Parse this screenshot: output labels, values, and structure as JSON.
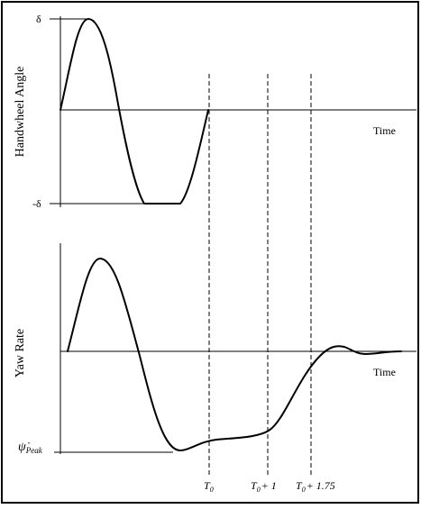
{
  "top_panel": {
    "ylabel": "Handwheel Angle",
    "xlabel": "Time",
    "pos_tick": "δ",
    "neg_tick": "-δ"
  },
  "bottom_panel": {
    "ylabel": "Yaw Rate",
    "xlabel": "Time",
    "peak_symbol": "ψ̇",
    "peak_subscript": "Peak"
  },
  "markers": [
    {
      "base": "T",
      "sub": "0",
      "suffix": ""
    },
    {
      "base": "T",
      "sub": "0",
      "suffix": "+ 1"
    },
    {
      "base": "T",
      "sub": "0",
      "suffix": "+ 1.75"
    }
  ]
}
